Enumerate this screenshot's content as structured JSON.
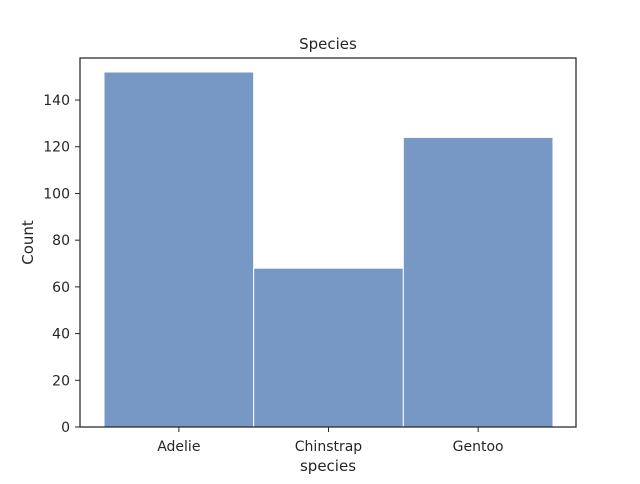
{
  "chart_data": {
    "type": "bar",
    "title": "Species",
    "xlabel": "species",
    "ylabel": "Count",
    "categories": [
      "Adelie",
      "Chinstrap",
      "Gentoo"
    ],
    "values": [
      152,
      68,
      124
    ],
    "ylim": [
      0,
      158
    ],
    "yticks": [
      0,
      20,
      40,
      60,
      80,
      100,
      120,
      140
    ],
    "bar_color": "#7798c5",
    "bar_edge_color": "#ffffff",
    "axis_color": "#262626",
    "grid": false
  }
}
